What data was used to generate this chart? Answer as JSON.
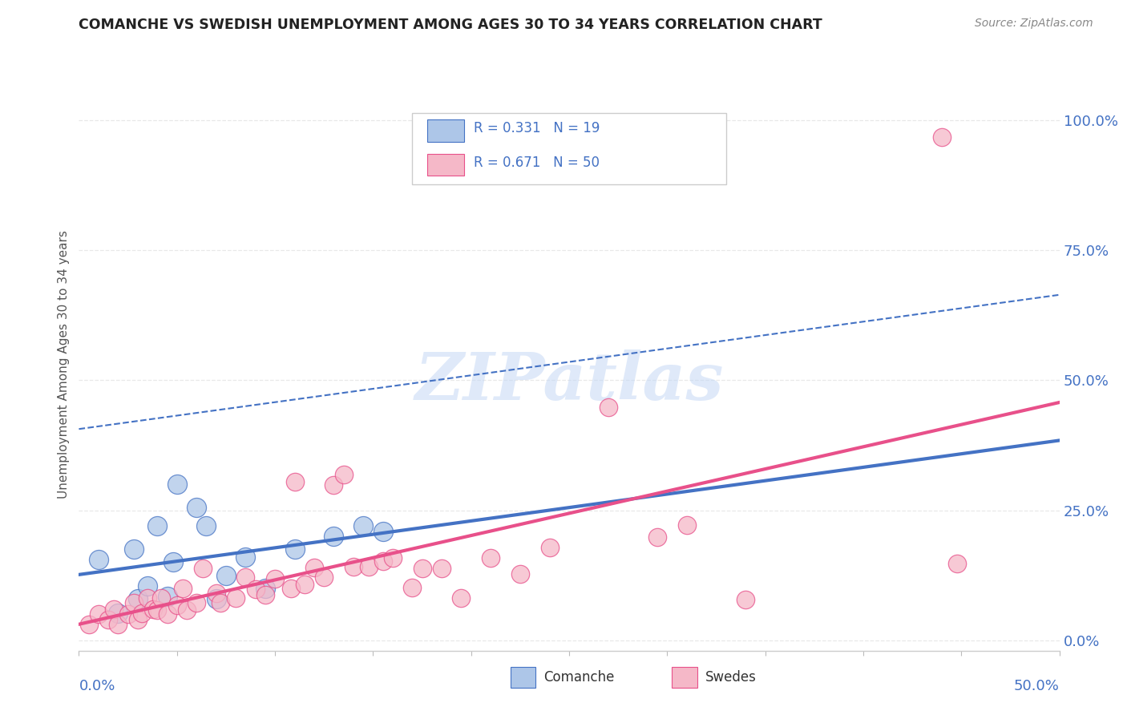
{
  "title": "COMANCHE VS SWEDISH UNEMPLOYMENT AMONG AGES 30 TO 34 YEARS CORRELATION CHART",
  "source": "Source: ZipAtlas.com",
  "ylabel": "Unemployment Among Ages 30 to 34 years",
  "y_tick_labels": [
    "0.0%",
    "25.0%",
    "50.0%",
    "75.0%",
    "100.0%"
  ],
  "y_tick_values": [
    0.0,
    0.25,
    0.5,
    0.75,
    1.0
  ],
  "x_range": [
    0.0,
    0.5
  ],
  "y_range": [
    -0.02,
    1.08
  ],
  "comanche_R": 0.331,
  "comanche_N": 19,
  "swedes_R": 0.671,
  "swedes_N": 50,
  "comanche_color": "#adc6e8",
  "swedes_color": "#f5b8c8",
  "comanche_line_color": "#4472c4",
  "swedes_line_color": "#e8508a",
  "legend_label_comanche": "Comanche",
  "legend_label_swedes": "Swedes",
  "watermark": "ZIPatlas",
  "watermark_color": "#c5d8f5",
  "title_color": "#222222",
  "source_color": "#888888",
  "stat_color": "#4472c4",
  "grid_color": "#e8e8e8",
  "background_color": "#ffffff",
  "comanche_points": [
    [
      0.01,
      0.155
    ],
    [
      0.02,
      0.052
    ],
    [
      0.028,
      0.175
    ],
    [
      0.03,
      0.08
    ],
    [
      0.035,
      0.105
    ],
    [
      0.04,
      0.22
    ],
    [
      0.045,
      0.085
    ],
    [
      0.048,
      0.15
    ],
    [
      0.05,
      0.3
    ],
    [
      0.06,
      0.255
    ],
    [
      0.065,
      0.22
    ],
    [
      0.07,
      0.08
    ],
    [
      0.075,
      0.125
    ],
    [
      0.085,
      0.16
    ],
    [
      0.095,
      0.1
    ],
    [
      0.11,
      0.175
    ],
    [
      0.13,
      0.2
    ],
    [
      0.145,
      0.22
    ],
    [
      0.155,
      0.21
    ]
  ],
  "swedes_points": [
    [
      0.005,
      0.03
    ],
    [
      0.01,
      0.05
    ],
    [
      0.015,
      0.04
    ],
    [
      0.018,
      0.06
    ],
    [
      0.02,
      0.03
    ],
    [
      0.025,
      0.05
    ],
    [
      0.028,
      0.072
    ],
    [
      0.03,
      0.04
    ],
    [
      0.032,
      0.052
    ],
    [
      0.035,
      0.082
    ],
    [
      0.038,
      0.06
    ],
    [
      0.04,
      0.058
    ],
    [
      0.042,
      0.082
    ],
    [
      0.045,
      0.05
    ],
    [
      0.05,
      0.068
    ],
    [
      0.053,
      0.1
    ],
    [
      0.055,
      0.058
    ],
    [
      0.06,
      0.072
    ],
    [
      0.063,
      0.138
    ],
    [
      0.07,
      0.09
    ],
    [
      0.072,
      0.072
    ],
    [
      0.08,
      0.082
    ],
    [
      0.085,
      0.122
    ],
    [
      0.09,
      0.098
    ],
    [
      0.095,
      0.088
    ],
    [
      0.1,
      0.118
    ],
    [
      0.108,
      0.1
    ],
    [
      0.11,
      0.305
    ],
    [
      0.115,
      0.108
    ],
    [
      0.12,
      0.14
    ],
    [
      0.125,
      0.122
    ],
    [
      0.13,
      0.298
    ],
    [
      0.135,
      0.318
    ],
    [
      0.14,
      0.142
    ],
    [
      0.148,
      0.142
    ],
    [
      0.155,
      0.152
    ],
    [
      0.16,
      0.158
    ],
    [
      0.17,
      0.102
    ],
    [
      0.175,
      0.138
    ],
    [
      0.185,
      0.138
    ],
    [
      0.195,
      0.082
    ],
    [
      0.21,
      0.158
    ],
    [
      0.225,
      0.128
    ],
    [
      0.24,
      0.178
    ],
    [
      0.27,
      0.448
    ],
    [
      0.295,
      0.198
    ],
    [
      0.31,
      0.222
    ],
    [
      0.34,
      0.078
    ],
    [
      0.44,
      0.968
    ],
    [
      0.448,
      0.148
    ]
  ]
}
